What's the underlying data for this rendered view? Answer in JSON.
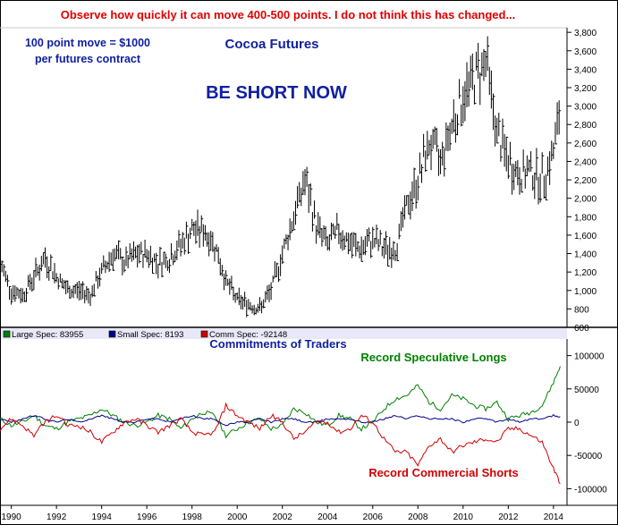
{
  "headline": "Observe how quickly it can move 400-500 points. I do not think this has changed...",
  "note_line1": "100 point move = $1000",
  "note_line2": "per futures contract",
  "title": "Cocoa Futures",
  "callout": "BE SHORT NOW",
  "colors": {
    "headline": "#e00000",
    "title_blue": "#1020a0",
    "large_spec": "#008000",
    "small_spec": "#00008b",
    "comm_spec": "#d00000",
    "price_bar": "#000000",
    "legend_strip": "#e8e8f8"
  },
  "cot": {
    "title": "Commitments of Traders",
    "legend": [
      {
        "label": "Large Spec: 83955",
        "color": "#008000"
      },
      {
        "label": "Small Spec: 8193",
        "color": "#00008b"
      },
      {
        "label": "Comm Spec: -92148",
        "color": "#d00000"
      }
    ],
    "annotation_longs": "Record Speculative Longs",
    "annotation_shorts": "Record Commercial Shorts"
  },
  "chart_data": [
    {
      "type": "line",
      "title": "Cocoa Futures",
      "ylim": [
        600,
        3850
      ],
      "yticks": [
        "3,800",
        "3,600",
        "3,400",
        "3,200",
        "3,000",
        "2,800",
        "2,600",
        "2,400",
        "2,200",
        "2,000",
        "1,800",
        "1,600",
        "1,400",
        "1,200",
        "1,000",
        "800",
        "600"
      ],
      "ytick_values": [
        3800,
        3600,
        3400,
        3200,
        3000,
        2800,
        2600,
        2400,
        2200,
        2000,
        1800,
        1600,
        1400,
        1200,
        1000,
        800,
        600
      ],
      "x": [
        1989.5,
        1990,
        1990.5,
        1991,
        1991.5,
        1992,
        1992.5,
        1993,
        1993.5,
        1994,
        1994.5,
        1995,
        1995.5,
        1996,
        1996.5,
        1997,
        1997.5,
        1998,
        1998.5,
        1999,
        1999.5,
        2000,
        2000.5,
        2001,
        2001.5,
        2002,
        2002.5,
        2003,
        2003.5,
        2004,
        2004.5,
        2005,
        2005.5,
        2006,
        2006.5,
        2007,
        2007.5,
        2008,
        2008.5,
        2009,
        2009.5,
        2010,
        2010.5,
        2011,
        2011.5,
        2012,
        2012.5,
        2013,
        2013.5,
        2014,
        2014.3
      ],
      "series": [
        {
          "values": [
            1300,
            1000,
            950,
            1150,
            1350,
            1150,
            1000,
            1000,
            950,
            1200,
            1400,
            1300,
            1380,
            1400,
            1300,
            1350,
            1500,
            1650,
            1650,
            1500,
            1100,
            900,
            850,
            800,
            1000,
            1400,
            1800,
            2200,
            1700,
            1500,
            1650,
            1500,
            1450,
            1550,
            1450,
            1450,
            1900,
            2200,
            2600,
            2400,
            2800,
            3100,
            3300,
            3500,
            2700,
            2400,
            2250,
            2300,
            2200,
            2500,
            2950
          ]
        }
      ]
    },
    {
      "type": "line",
      "title": "Commitments of Traders",
      "ylim": [
        -125000,
        125000
      ],
      "yticks": [
        "100000",
        "50000",
        "0",
        "-50000",
        "-100000"
      ],
      "ytick_values": [
        100000,
        50000,
        0,
        -50000,
        -100000
      ],
      "xticks": [
        "1990",
        "1992",
        "1994",
        "1996",
        "1998",
        "2000",
        "2002",
        "2004",
        "2006",
        "2008",
        "2010",
        "2012",
        "2014"
      ],
      "xtick_values": [
        1990,
        1992,
        1994,
        1996,
        1998,
        2000,
        2002,
        2004,
        2006,
        2008,
        2010,
        2012,
        2014
      ],
      "x": [
        1989.5,
        1990,
        1990.5,
        1991,
        1991.5,
        1992,
        1992.5,
        1993,
        1993.5,
        1994,
        1994.5,
        1995,
        1995.5,
        1996,
        1996.5,
        1997,
        1997.5,
        1998,
        1998.5,
        1999,
        1999.5,
        2000,
        2000.5,
        2001,
        2001.5,
        2002,
        2002.5,
        2003,
        2003.5,
        2004,
        2004.5,
        2005,
        2005.5,
        2006,
        2006.5,
        2007,
        2007.5,
        2008,
        2008.5,
        2009,
        2009.5,
        2010,
        2010.5,
        2011,
        2011.5,
        2012,
        2012.5,
        2013,
        2013.5,
        2014,
        2014.3
      ],
      "series": [
        {
          "name": "Large Spec",
          "values": [
            5000,
            -5000,
            0,
            10000,
            -5000,
            -10000,
            0,
            5000,
            10000,
            20000,
            10000,
            0,
            -5000,
            0,
            10000,
            5000,
            -10000,
            5000,
            15000,
            10000,
            -20000,
            -10000,
            0,
            5000,
            -10000,
            -5000,
            20000,
            15000,
            0,
            -5000,
            10000,
            5000,
            -10000,
            0,
            20000,
            35000,
            40000,
            55000,
            30000,
            20000,
            40000,
            35000,
            25000,
            20000,
            30000,
            5000,
            10000,
            15000,
            25000,
            60000,
            83955
          ]
        },
        {
          "name": "Small Spec",
          "values": [
            5000,
            0,
            5000,
            10000,
            5000,
            0,
            5000,
            0,
            5000,
            10000,
            5000,
            0,
            0,
            5000,
            5000,
            0,
            5000,
            10000,
            5000,
            5000,
            -5000,
            0,
            0,
            5000,
            0,
            5000,
            5000,
            0,
            0,
            5000,
            5000,
            5000,
            0,
            0,
            5000,
            10000,
            5000,
            10000,
            5000,
            5000,
            5000,
            0,
            5000,
            5000,
            0,
            5000,
            0,
            5000,
            5000,
            10000,
            8193
          ]
        },
        {
          "name": "Comm Spec",
          "values": [
            -10000,
            5000,
            -5000,
            -20000,
            0,
            10000,
            -5000,
            -5000,
            -15000,
            -30000,
            -15000,
            0,
            5000,
            -5000,
            -15000,
            -5000,
            5000,
            -15000,
            -20000,
            -15000,
            25000,
            10000,
            0,
            -10000,
            10000,
            0,
            -25000,
            -15000,
            0,
            0,
            -15000,
            -10000,
            10000,
            0,
            -25000,
            -45000,
            -45000,
            -65000,
            -35000,
            -25000,
            -45000,
            -35000,
            -30000,
            -25000,
            -30000,
            -10000,
            -10000,
            -20000,
            -30000,
            -70000,
            -92148
          ]
        }
      ]
    }
  ]
}
